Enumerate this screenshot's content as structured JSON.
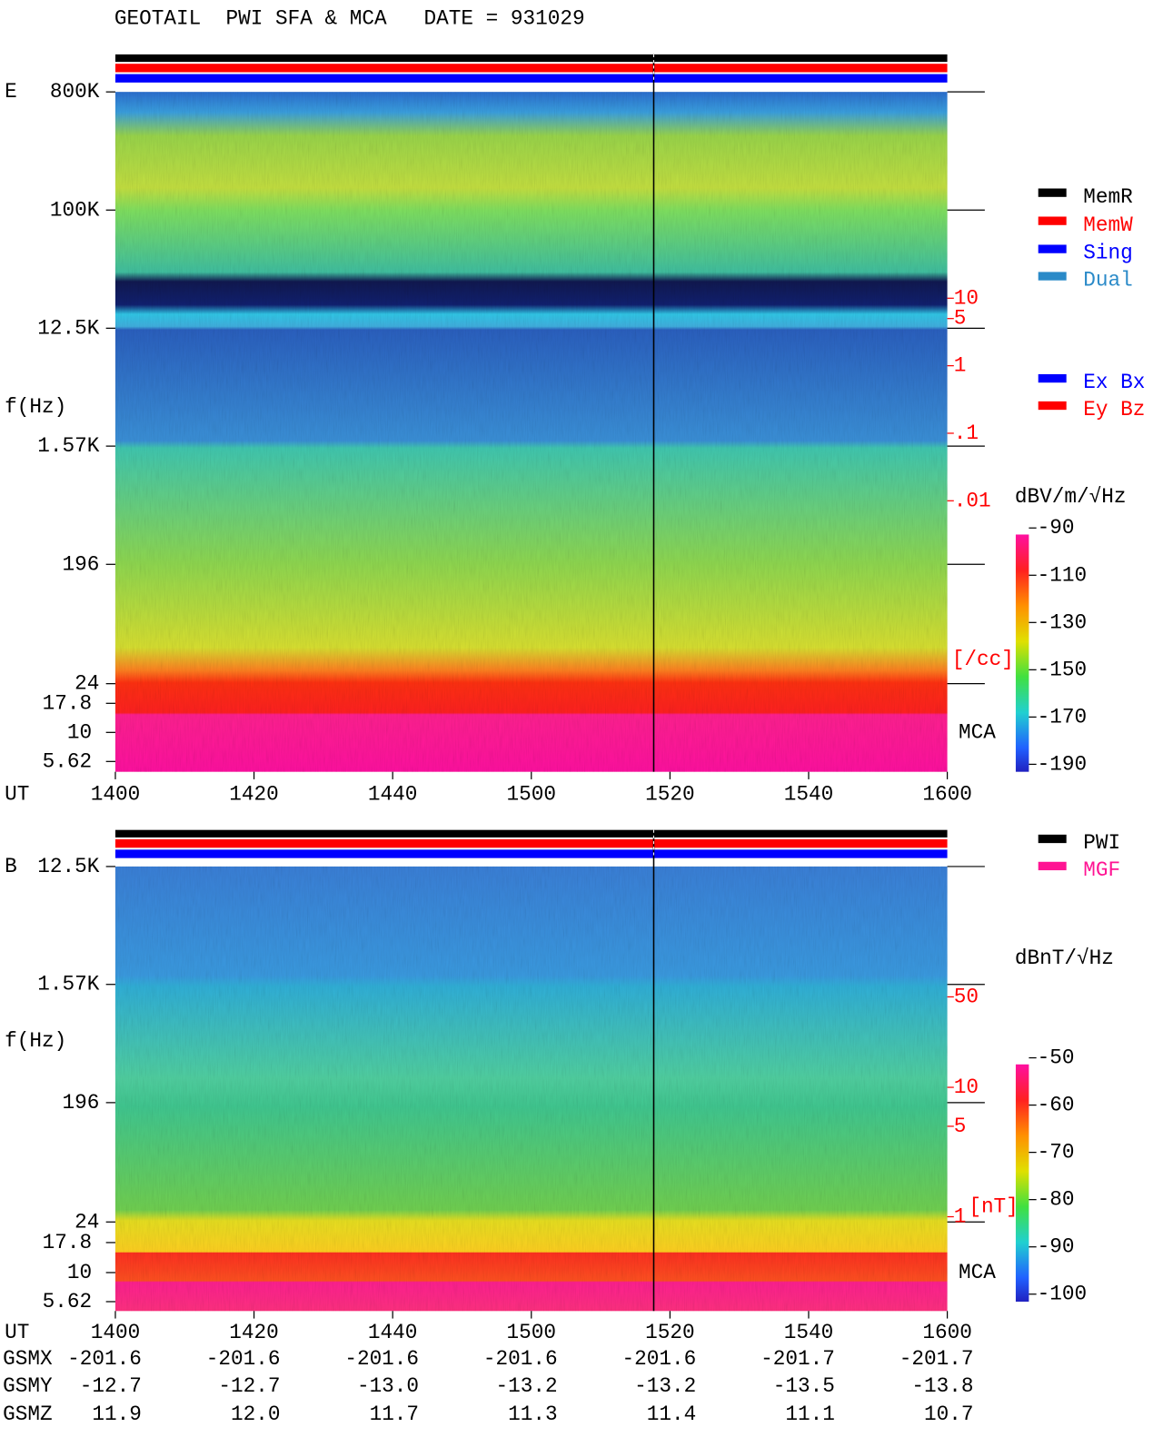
{
  "title": "GEOTAIL  PWI SFA & MCA   DATE = 931029",
  "chart_data": [
    {
      "type": "spectrogram",
      "panel_label": "E",
      "ylabel": "f(Hz)",
      "xlabel": "UT",
      "xticks": [
        "1400",
        "1420",
        "1440",
        "1500",
        "1520",
        "1540",
        "1600"
      ],
      "log_y": true,
      "yticks": [
        {
          "value": 800000,
          "label": "800K"
        },
        {
          "value": 100000,
          "label": "100K"
        },
        {
          "value": 12500,
          "label": "12.5K"
        },
        {
          "value": 1570,
          "label": "1.57K"
        },
        196,
        24
      ],
      "mca_channels": [
        17.8,
        10,
        5.62
      ],
      "mca_label": "MCA",
      "y2ticks": [
        10,
        5,
        1,
        {
          "value": 0.1,
          "label": ".1"
        },
        {
          "value": 0.01,
          "label": ".01"
        }
      ],
      "y2label": "[/cc]",
      "colorbar": {
        "label": "dBV/m/√Hz",
        "clim": [
          -190,
          -90
        ],
        "ticks": [
          -90,
          -110,
          -130,
          -150,
          -170,
          -190
        ]
      },
      "legend": [
        {
          "name": "MemR",
          "color": "#000000"
        },
        {
          "name": "MemW",
          "color": "#ff0000"
        },
        {
          "name": "Sing",
          "color": "#0000ff"
        },
        {
          "name": "Dual",
          "color": "#2a8ac8"
        }
      ],
      "legend2": [
        {
          "name": "Ex Bx",
          "color": "#0000ff"
        },
        {
          "name": "Ey Bz",
          "color": "#ff0000"
        }
      ]
    },
    {
      "type": "spectrogram",
      "panel_label": "B",
      "ylabel": "f(Hz)",
      "xlabel": "UT",
      "xticks": [
        "1400",
        "1420",
        "1440",
        "1500",
        "1520",
        "1540",
        "1600"
      ],
      "log_y": true,
      "yticks": [
        {
          "value": 12500,
          "label": "12.5K"
        },
        {
          "value": 1570,
          "label": "1.57K"
        },
        196,
        24
      ],
      "mca_channels": [
        17.8,
        10,
        5.62
      ],
      "mca_label": "MCA",
      "y2ticks": [
        50,
        10,
        5,
        1
      ],
      "y2label": "[nT]",
      "colorbar": {
        "label": "dBnT/√Hz",
        "clim": [
          -100,
          -50
        ],
        "ticks": [
          -50,
          -60,
          -70,
          -80,
          -90,
          -100
        ]
      },
      "legend": [
        {
          "name": "PWI",
          "color": "#000000"
        },
        {
          "name": "MGF",
          "color": "#ff1493"
        }
      ]
    }
  ],
  "orbit": {
    "rows": [
      {
        "name": "GSMX",
        "values": [
          "-201.6",
          "-201.6",
          "-201.6",
          "-201.6",
          "-201.6",
          "-201.7",
          "-201.7"
        ]
      },
      {
        "name": "GSMY",
        "values": [
          "-12.7",
          "-12.7",
          "-13.0",
          "-13.2",
          "-13.2",
          "-13.5",
          "-13.8"
        ]
      },
      {
        "name": "GSMZ",
        "values": [
          "11.9",
          "12.0",
          "11.7",
          "11.3",
          "11.4",
          "11.1",
          "10.7"
        ]
      }
    ]
  }
}
